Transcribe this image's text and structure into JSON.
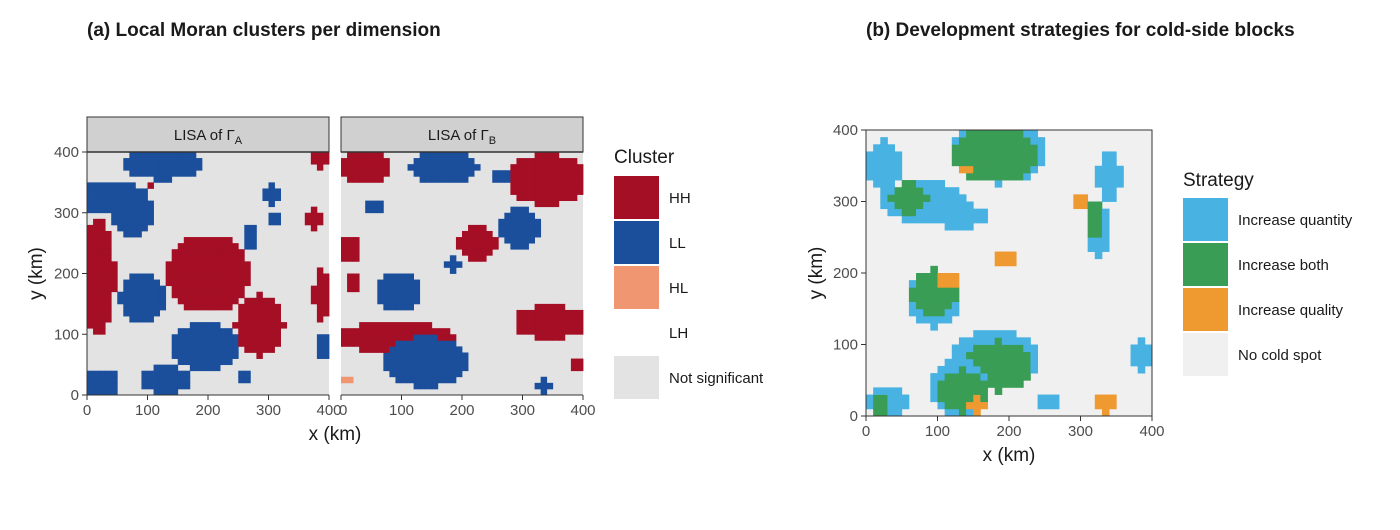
{
  "panel_a": {
    "title": "(a) Local Moran clusters per dimension"
  },
  "panel_b": {
    "title": "(b) Development strategies for cold-side blocks"
  },
  "colors": {
    "HH": "#A50F25",
    "LL": "#1B4F9C",
    "HL": "#F09670",
    "LH": "#FFFFFF",
    "NS": "#E3E3E3",
    "quantity": "#48B2E2",
    "both": "#3A9D55",
    "quality": "#EE9A30",
    "none": "#F0F0F0",
    "strip": "#D0D0D0"
  },
  "chart_data": [
    {
      "type": "heatmap",
      "facet": "LISA of Γ",
      "facet_sub": "A",
      "xlabel": "x (km)",
      "ylabel": "y (km)",
      "xlim": [
        0,
        400
      ],
      "ylim": [
        0,
        400
      ],
      "x_ticks": [
        "0",
        "100",
        "200",
        "300",
        "400"
      ],
      "y_ticks": [
        "0",
        "100",
        "200",
        "300",
        "400"
      ],
      "legend_title": "Cluster",
      "legend": [
        "HH",
        "LL",
        "HL",
        "LH",
        "Not significant"
      ],
      "regions": [
        {
          "cluster": "LL",
          "cx": 125,
          "cy": 382,
          "rx": 65,
          "ry": 28
        },
        {
          "cluster": "LL",
          "cx": 40,
          "cy": 325,
          "rx": 60,
          "ry": 28
        },
        {
          "cluster": "LL",
          "cx": 75,
          "cy": 300,
          "rx": 35,
          "ry": 38
        },
        {
          "cluster": "HH",
          "cx": 105,
          "cy": 343,
          "rx": 10,
          "ry": 6
        },
        {
          "cluster": "LL",
          "cx": 305,
          "cy": 330,
          "rx": 12,
          "ry": 18
        },
        {
          "cluster": "LL",
          "cx": 310,
          "cy": 288,
          "rx": 10,
          "ry": 14
        },
        {
          "cluster": "LL",
          "cx": 270,
          "cy": 258,
          "rx": 12,
          "ry": 25
        },
        {
          "cluster": "HH",
          "cx": 385,
          "cy": 388,
          "rx": 18,
          "ry": 15
        },
        {
          "cluster": "HH",
          "cx": 375,
          "cy": 290,
          "rx": 18,
          "ry": 18
        },
        {
          "cluster": "HH",
          "cx": 18,
          "cy": 195,
          "rx": 28,
          "ry": 95
        },
        {
          "cluster": "LL",
          "cx": 92,
          "cy": 160,
          "rx": 38,
          "ry": 42
        },
        {
          "cluster": "HH",
          "cx": 200,
          "cy": 200,
          "rx": 68,
          "ry": 65
        },
        {
          "cluster": "HH",
          "cx": 285,
          "cy": 115,
          "rx": 40,
          "ry": 50
        },
        {
          "cluster": "HH",
          "cx": 388,
          "cy": 165,
          "rx": 14,
          "ry": 45
        },
        {
          "cluster": "LL",
          "cx": 195,
          "cy": 80,
          "rx": 60,
          "ry": 38
        },
        {
          "cluster": "LL",
          "cx": 130,
          "cy": 25,
          "rx": 40,
          "ry": 25
        },
        {
          "cluster": "LL",
          "cx": 25,
          "cy": 20,
          "rx": 28,
          "ry": 22
        },
        {
          "cluster": "LL",
          "cx": 390,
          "cy": 80,
          "rx": 12,
          "ry": 20
        },
        {
          "cluster": "LL",
          "cx": 258,
          "cy": 30,
          "rx": 10,
          "ry": 15
        }
      ]
    },
    {
      "type": "heatmap",
      "facet": "LISA of Γ",
      "facet_sub": "B",
      "xlabel": "x (km)",
      "ylabel": "",
      "xlim": [
        0,
        400
      ],
      "ylim": [
        0,
        400
      ],
      "x_ticks": [
        "0",
        "100",
        "200",
        "300",
        "400"
      ],
      "regions": [
        {
          "cluster": "HH",
          "cx": 40,
          "cy": 375,
          "rx": 42,
          "ry": 28
        },
        {
          "cluster": "LL",
          "cx": 170,
          "cy": 375,
          "rx": 58,
          "ry": 28
        },
        {
          "cluster": "HH",
          "cx": 340,
          "cy": 355,
          "rx": 65,
          "ry": 42
        },
        {
          "cluster": "LL",
          "cx": 265,
          "cy": 360,
          "rx": 14,
          "ry": 12
        },
        {
          "cluster": "LL",
          "cx": 55,
          "cy": 310,
          "rx": 18,
          "ry": 12
        },
        {
          "cluster": "LL",
          "cx": 295,
          "cy": 275,
          "rx": 32,
          "ry": 32
        },
        {
          "cluster": "HH",
          "cx": 225,
          "cy": 250,
          "rx": 32,
          "ry": 32
        },
        {
          "cluster": "HH",
          "cx": 15,
          "cy": 240,
          "rx": 18,
          "ry": 22
        },
        {
          "cluster": "LL",
          "cx": 185,
          "cy": 215,
          "rx": 14,
          "ry": 10
        },
        {
          "cluster": "HH",
          "cx": 18,
          "cy": 185,
          "rx": 12,
          "ry": 20
        },
        {
          "cluster": "LL",
          "cx": 95,
          "cy": 170,
          "rx": 38,
          "ry": 30
        },
        {
          "cluster": "HH",
          "cx": 90,
          "cy": 95,
          "rx": 100,
          "ry": 24
        },
        {
          "cluster": "LL",
          "cx": 140,
          "cy": 55,
          "rx": 70,
          "ry": 42
        },
        {
          "cluster": "HH",
          "cx": 345,
          "cy": 120,
          "rx": 60,
          "ry": 28
        },
        {
          "cluster": "LL",
          "cx": 335,
          "cy": 15,
          "rx": 12,
          "ry": 12
        },
        {
          "cluster": "HH",
          "cx": 395,
          "cy": 50,
          "rx": 12,
          "ry": 10
        },
        {
          "cluster": "HL",
          "cx": 10,
          "cy": 25,
          "rx": 6,
          "ry": 8
        }
      ]
    },
    {
      "type": "heatmap",
      "xlabel": "x (km)",
      "ylabel": "y (km)",
      "xlim": [
        0,
        400
      ],
      "ylim": [
        0,
        400
      ],
      "x_ticks": [
        "0",
        "100",
        "200",
        "300",
        "400"
      ],
      "y_ticks": [
        "0",
        "100",
        "200",
        "300",
        "400"
      ],
      "legend_title": "Strategy",
      "legend": [
        "Increase quantity",
        "Increase both",
        "Increase quality",
        "No cold spot"
      ],
      "regions": [
        {
          "strategy": "quantity",
          "cx": 25,
          "cy": 350,
          "rx": 28,
          "ry": 35
        },
        {
          "strategy": "quantity",
          "cx": 80,
          "cy": 300,
          "rx": 65,
          "ry": 28
        },
        {
          "strategy": "quantity",
          "cx": 130,
          "cy": 280,
          "rx": 40,
          "ry": 18
        },
        {
          "strategy": "both",
          "cx": 60,
          "cy": 305,
          "rx": 28,
          "ry": 22
        },
        {
          "strategy": "quantity",
          "cx": 185,
          "cy": 370,
          "rx": 70,
          "ry": 45
        },
        {
          "strategy": "both",
          "cx": 180,
          "cy": 365,
          "rx": 60,
          "ry": 40
        },
        {
          "strategy": "quality",
          "cx": 140,
          "cy": 345,
          "rx": 10,
          "ry": 10
        },
        {
          "strategy": "quantity",
          "cx": 340,
          "cy": 335,
          "rx": 18,
          "ry": 35
        },
        {
          "strategy": "quantity",
          "cx": 325,
          "cy": 260,
          "rx": 18,
          "ry": 35
        },
        {
          "strategy": "both",
          "cx": 320,
          "cy": 275,
          "rx": 14,
          "ry": 28
        },
        {
          "strategy": "quality",
          "cx": 300,
          "cy": 300,
          "rx": 16,
          "ry": 12
        },
        {
          "strategy": "quality",
          "cx": 195,
          "cy": 220,
          "rx": 20,
          "ry": 12
        },
        {
          "strategy": "quantity",
          "cx": 95,
          "cy": 165,
          "rx": 38,
          "ry": 40
        },
        {
          "strategy": "both",
          "cx": 95,
          "cy": 172,
          "rx": 32,
          "ry": 34
        },
        {
          "strategy": "quality",
          "cx": 115,
          "cy": 190,
          "rx": 12,
          "ry": 10
        },
        {
          "strategy": "quantity",
          "cx": 180,
          "cy": 80,
          "rx": 60,
          "ry": 40
        },
        {
          "strategy": "both",
          "cx": 185,
          "cy": 70,
          "rx": 50,
          "ry": 35
        },
        {
          "strategy": "quantity",
          "cx": 130,
          "cy": 40,
          "rx": 45,
          "ry": 38
        },
        {
          "strategy": "both",
          "cx": 135,
          "cy": 35,
          "rx": 35,
          "ry": 30
        },
        {
          "strategy": "quality",
          "cx": 155,
          "cy": 15,
          "rx": 16,
          "ry": 12
        },
        {
          "strategy": "quantity",
          "cx": 30,
          "cy": 20,
          "rx": 30,
          "ry": 20
        },
        {
          "strategy": "both",
          "cx": 20,
          "cy": 15,
          "rx": 14,
          "ry": 12
        },
        {
          "strategy": "quantity",
          "cx": 255,
          "cy": 20,
          "rx": 18,
          "ry": 14
        },
        {
          "strategy": "quality",
          "cx": 335,
          "cy": 18,
          "rx": 16,
          "ry": 14
        },
        {
          "strategy": "quantity",
          "cx": 385,
          "cy": 85,
          "rx": 14,
          "ry": 25
        }
      ]
    }
  ]
}
